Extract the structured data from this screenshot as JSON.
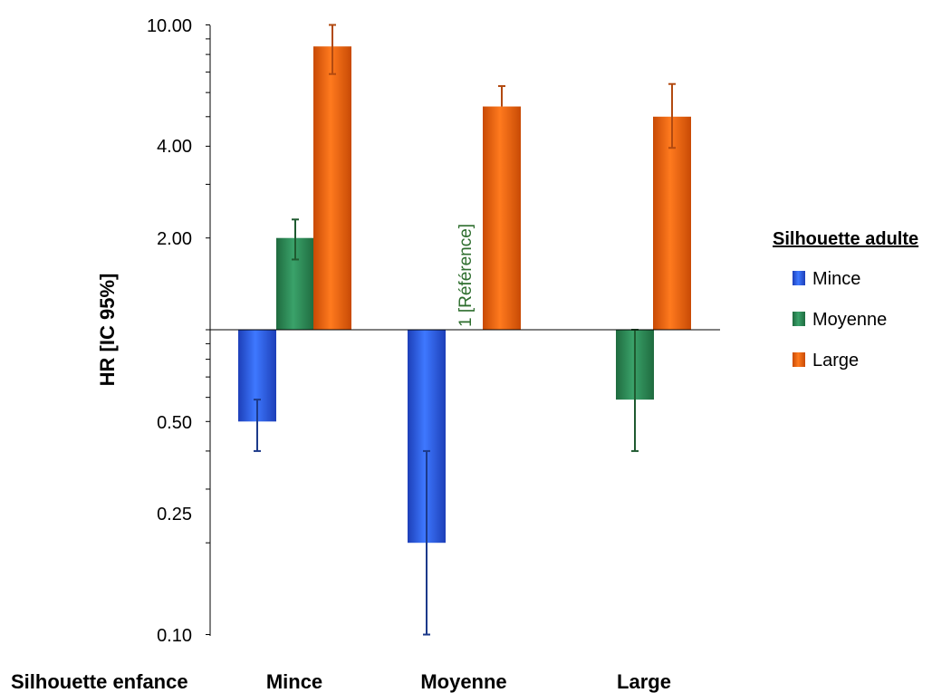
{
  "chart_data": {
    "type": "bar",
    "y_scale": "log",
    "baseline": 1,
    "ylabel": "HR [IC 95%]",
    "xlabel": "Silhouette enfance",
    "y_ticks": [
      "10.00",
      "4.00",
      "2.00",
      "0.50",
      "0.25",
      "0.10"
    ],
    "ylim": [
      0.1,
      10
    ],
    "categories": [
      "Mince",
      "Moyenne",
      "Large"
    ],
    "legend_title": "Silhouette adulte",
    "legend_position": "right",
    "reference_label": "1 [Référence]",
    "series": [
      {
        "name": "Mince",
        "color": "#2f5fe0",
        "values": [
          0.5,
          0.2,
          null
        ],
        "ci_low": [
          0.4,
          0.1,
          null
        ],
        "ci_high": [
          0.59,
          0.4,
          null
        ]
      },
      {
        "name": "Moyenne",
        "color": "#2e8a55",
        "values": [
          2.0,
          1.0,
          0.59
        ],
        "ci_low": [
          1.7,
          null,
          0.4
        ],
        "ci_high": [
          2.3,
          null,
          1.0
        ]
      },
      {
        "name": "Large",
        "color": "#f0620e",
        "values": [
          8.5,
          5.4,
          5.0
        ],
        "ci_low": [
          6.9,
          null,
          3.95
        ],
        "ci_high": [
          10.0,
          6.3,
          6.4
        ]
      }
    ]
  }
}
